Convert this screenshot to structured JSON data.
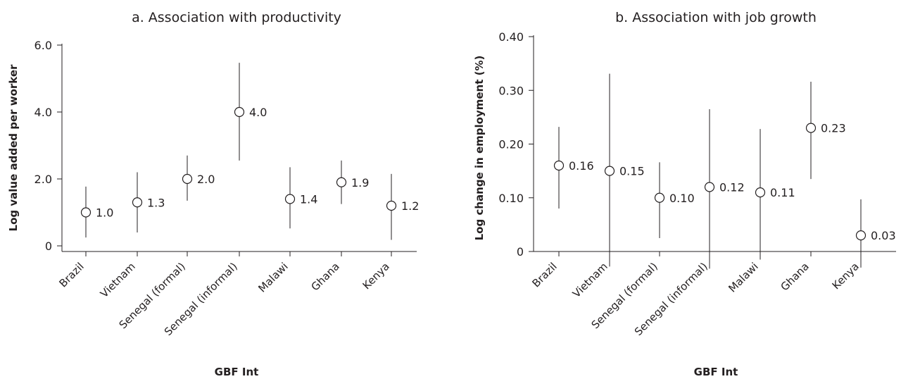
{
  "chart_data": [
    {
      "type": "scatter",
      "title": "a. Association with productivity",
      "xlabel": "GBF Int",
      "ylabel": "Log value added per worker",
      "categories": [
        "Brazil",
        "Vietnam",
        "Senegal (formal)",
        "Senegal (informal)",
        "Malawi",
        "Ghana",
        "Kenya"
      ],
      "values": [
        1.0,
        1.3,
        2.0,
        4.0,
        1.4,
        1.9,
        1.2
      ],
      "value_labels": [
        "1.0",
        "1.3",
        "2.0",
        "4.0",
        "1.4",
        "1.9",
        "1.2"
      ],
      "ci_low": [
        0.25,
        0.4,
        1.35,
        2.55,
        0.52,
        1.25,
        0.18
      ],
      "ci_high": [
        1.77,
        2.2,
        2.7,
        5.47,
        2.35,
        2.55,
        2.15
      ],
      "ylim": [
        0,
        6.0
      ],
      "yticks": [
        0,
        2.0,
        4.0,
        6.0
      ],
      "ytick_labels": [
        "0",
        "2.0",
        "4.0",
        "6.0"
      ],
      "grid": false
    },
    {
      "type": "scatter",
      "title": "b. Association with job growth",
      "xlabel": "GBF Int",
      "ylabel": "Log change in employment (%)",
      "categories": [
        "Brazil",
        "Vietnam",
        "Senegal (formal)",
        "Senegal (informal)",
        "Malawi",
        "Ghana",
        "Kenya"
      ],
      "values": [
        0.16,
        0.15,
        0.1,
        0.12,
        0.11,
        0.23,
        0.03
      ],
      "value_labels": [
        "0.16",
        "0.15",
        "0.10",
        "0.12",
        "0.11",
        "0.23",
        "0.03"
      ],
      "ci_low": [
        0.08,
        -0.028,
        0.025,
        -0.032,
        -0.015,
        0.135,
        -0.03
      ],
      "ci_high": [
        0.232,
        0.331,
        0.166,
        0.265,
        0.228,
        0.316,
        0.097
      ],
      "ylim": [
        -0.05,
        0.4
      ],
      "yticks": [
        0,
        0.1,
        0.2,
        0.3,
        0.4
      ],
      "ytick_labels": [
        "0",
        "0.10",
        "0.20",
        "0.30",
        "0.40"
      ],
      "grid": false
    }
  ]
}
